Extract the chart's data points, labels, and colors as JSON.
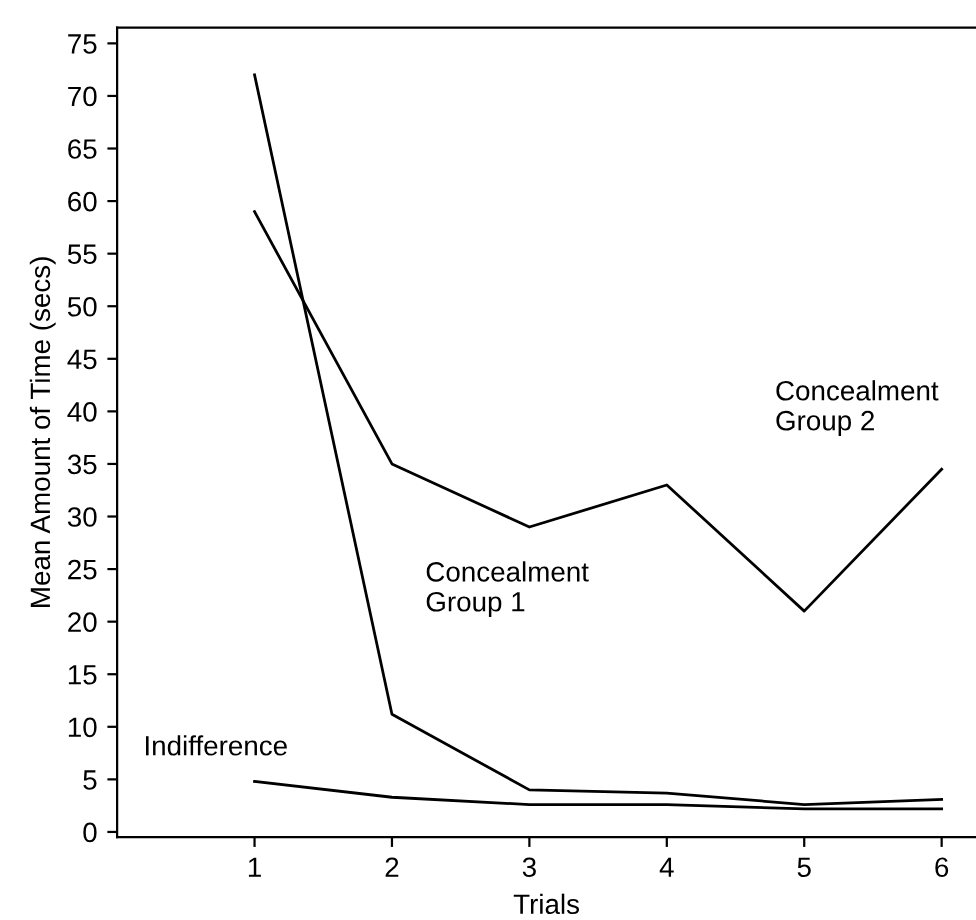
{
  "chart_data": {
    "type": "line",
    "xlabel": "Trials",
    "ylabel": "Mean Amount of Time (secs)",
    "x": [
      1,
      2,
      3,
      4,
      5,
      6
    ],
    "series": [
      {
        "name": "Concealment Group 1",
        "color": "#000000",
        "values": [
          72,
          11.2,
          4,
          3.7,
          2.6,
          3.1
        ]
      },
      {
        "name": "Concealment Group 2",
        "color": "#000000",
        "values": [
          59,
          35,
          29,
          33,
          21,
          34.5
        ]
      },
      {
        "name": "Indifference",
        "color": "#000000",
        "values": [
          4.8,
          3.3,
          2.6,
          2.6,
          2.2,
          2.2
        ]
      }
    ],
    "xlim": [
      0,
      6.25
    ],
    "ylim": [
      -0.5,
      76.5
    ],
    "xticks": [
      1,
      2,
      3,
      4,
      5,
      6
    ],
    "yticks": [
      0,
      5,
      10,
      15,
      20,
      25,
      30,
      35,
      40,
      45,
      50,
      55,
      60,
      65,
      70,
      75
    ],
    "grid": false,
    "legend": false,
    "marker": "none",
    "line_style": "solid"
  }
}
